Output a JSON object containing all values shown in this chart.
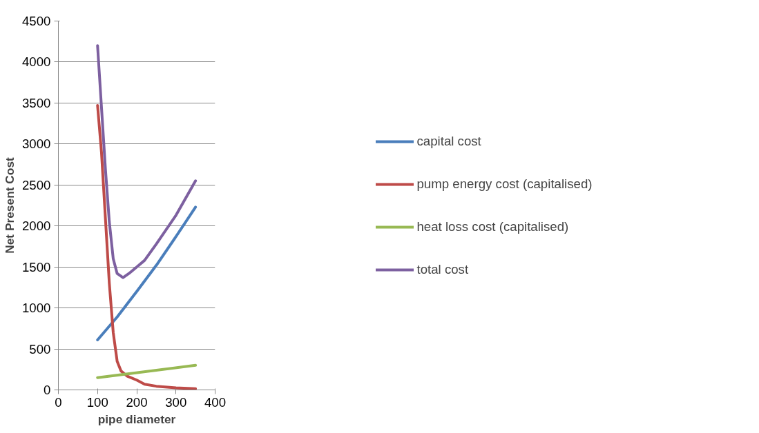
{
  "chart_data": {
    "type": "line",
    "xlabel": "pipe diameter",
    "ylabel": "Net Present Cost",
    "xlim": [
      0,
      400
    ],
    "xticks": [
      0,
      100,
      200,
      300,
      400
    ],
    "ylim": [
      0,
      4500
    ],
    "yticks": [
      0,
      500,
      1000,
      1500,
      2000,
      2500,
      3000,
      3500,
      4000,
      4500
    ],
    "grid": "y",
    "legend": "right",
    "line_style": "solid",
    "marker": "none",
    "series": [
      {
        "name": "capital cost",
        "color": "#4a7ebb",
        "x": [
          100,
          150,
          200,
          250,
          300,
          350
        ],
        "values": [
          610,
          890,
          1200,
          1520,
          1870,
          2230
        ]
      },
      {
        "name": "pump energy cost (capitalised)",
        "color": "#be4b48",
        "x": [
          100,
          110,
          120,
          130,
          140,
          150,
          160,
          175,
          200,
          220,
          250,
          300,
          350
        ],
        "values": [
          3470,
          2900,
          2100,
          1300,
          700,
          350,
          230,
          170,
          120,
          70,
          45,
          25,
          15
        ]
      },
      {
        "name": "heat loss cost (capitalised)",
        "color": "#98b954",
        "x": [
          100,
          350
        ],
        "values": [
          150,
          300
        ]
      },
      {
        "name": "total cost",
        "color": "#7d60a0",
        "x": [
          100,
          110,
          120,
          130,
          140,
          150,
          165,
          180,
          200,
          220,
          250,
          300,
          350
        ],
        "values": [
          4200,
          3450,
          2700,
          2050,
          1600,
          1420,
          1370,
          1420,
          1500,
          1580,
          1780,
          2130,
          2550
        ]
      }
    ]
  }
}
